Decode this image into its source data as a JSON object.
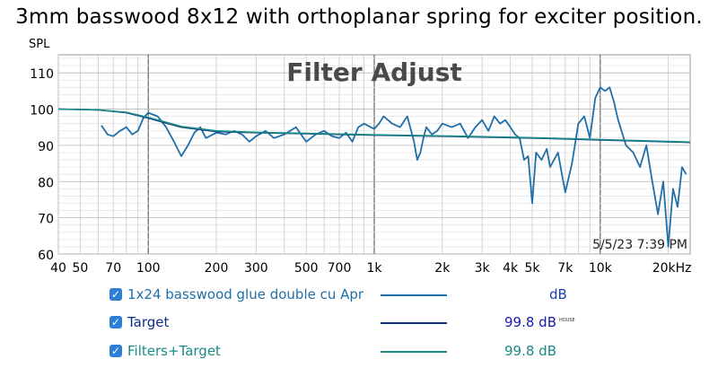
{
  "page_title": "3mm basswood 8x12 with orthoplanar spring for exciter position.",
  "legend": [
    {
      "name": "1x24 basswood glue double cu Apr",
      "color": "#1f6fa8",
      "value": "dB",
      "sup": "",
      "checked": "✓"
    },
    {
      "name": "Target",
      "color": "#0d2c8a",
      "value": "99.8 dB",
      "sup": "HOUSE",
      "checked": "✓"
    },
    {
      "name": "Filters+Target",
      "color": "#1a8a84",
      "value": "99.8 dB",
      "sup": "",
      "checked": "✓"
    }
  ],
  "chart_data": {
    "type": "line",
    "title": "Filter Adjust",
    "ylabel": "SPL",
    "timestamp": "5/5/23 7:39 PM",
    "x_scale": "log",
    "xlim": [
      40,
      25000
    ],
    "ylim": [
      60,
      115
    ],
    "grid": true,
    "x_ticks": [
      {
        "v": 40,
        "label": "40"
      },
      {
        "v": 50,
        "label": "50"
      },
      {
        "v": 70,
        "label": "70"
      },
      {
        "v": 100,
        "label": "100"
      },
      {
        "v": 200,
        "label": "200"
      },
      {
        "v": 300,
        "label": "300"
      },
      {
        "v": 500,
        "label": "500"
      },
      {
        "v": 700,
        "label": "700"
      },
      {
        "v": 1000,
        "label": "1k"
      },
      {
        "v": 2000,
        "label": "2k"
      },
      {
        "v": 3000,
        "label": "3k"
      },
      {
        "v": 4000,
        "label": "4k"
      },
      {
        "v": 5000,
        "label": "5k"
      },
      {
        "v": 7000,
        "label": "7k"
      },
      {
        "v": 10000,
        "label": "10k"
      },
      {
        "v": 20000,
        "label": "20kHz"
      }
    ],
    "y_ticks": [
      {
        "v": 60,
        "label": "60"
      },
      {
        "v": 70,
        "label": "70"
      },
      {
        "v": 80,
        "label": "80"
      },
      {
        "v": 90,
        "label": "90"
      },
      {
        "v": 100,
        "label": "100"
      },
      {
        "v": 110,
        "label": "110"
      }
    ],
    "series": [
      {
        "name": "1x24 basswood glue double cu Apr",
        "color": "#1f6fa8",
        "x": [
          62,
          66,
          70,
          75,
          80,
          85,
          90,
          95,
          100,
          110,
          120,
          130,
          140,
          150,
          160,
          170,
          180,
          200,
          220,
          240,
          260,
          280,
          300,
          330,
          360,
          400,
          450,
          500,
          550,
          600,
          650,
          700,
          750,
          800,
          850,
          900,
          1000,
          1050,
          1100,
          1200,
          1300,
          1400,
          1500,
          1550,
          1600,
          1650,
          1700,
          1800,
          1900,
          2000,
          2200,
          2400,
          2600,
          2800,
          3000,
          3200,
          3400,
          3600,
          3800,
          4000,
          4200,
          4400,
          4600,
          4800,
          5000,
          5200,
          5500,
          5800,
          6000,
          6500,
          7000,
          7500,
          8000,
          8500,
          9000,
          9500,
          10000,
          10500,
          11000,
          11500,
          12000,
          13000,
          14000,
          15000,
          16000,
          17000,
          18000,
          19000,
          20000,
          21000,
          22000,
          23000,
          24000
        ],
        "y": [
          95.5,
          93.0,
          92.5,
          94.0,
          95.0,
          93.0,
          94.0,
          97.5,
          99.0,
          98.0,
          95.0,
          91.0,
          87.0,
          90.0,
          93.5,
          95.0,
          92.0,
          93.5,
          93.0,
          94.0,
          93.0,
          91.0,
          92.5,
          94.0,
          92.0,
          93.0,
          95.0,
          91.0,
          93.0,
          94.0,
          92.5,
          92.0,
          93.5,
          91.0,
          95.0,
          96.0,
          94.5,
          96.0,
          98.0,
          96.0,
          95.0,
          98.0,
          91.0,
          86.0,
          88.0,
          92.0,
          95.0,
          93.0,
          94.0,
          96.0,
          95.0,
          96.0,
          92.0,
          95.0,
          97.0,
          94.0,
          98.0,
          96.0,
          97.0,
          95.0,
          93.0,
          92.0,
          86.0,
          87.0,
          74.0,
          88.0,
          86.0,
          89.0,
          84.0,
          88.0,
          77.0,
          85.0,
          96.0,
          98.0,
          92.0,
          103.0,
          106.0,
          105.0,
          106.0,
          102.0,
          97.0,
          90.0,
          88.0,
          84.0,
          90.0,
          80.0,
          71.0,
          80.0,
          62.0,
          78.0,
          73.0,
          84.0,
          82.0
        ]
      },
      {
        "name": "Target",
        "color": "#0d2c8a",
        "x": [
          40,
          60,
          80,
          100,
          140,
          200,
          300,
          500,
          1000,
          2000,
          5000,
          10000,
          20000,
          25000
        ],
        "y": [
          100.0,
          99.8,
          99.0,
          97.5,
          95.0,
          93.8,
          93.5,
          93.2,
          92.8,
          92.5,
          92.0,
          91.5,
          91.0,
          90.8
        ]
      },
      {
        "name": "Filters+Target",
        "color": "#1a8a84",
        "x": [
          40,
          60,
          80,
          100,
          140,
          200,
          300,
          500,
          1000,
          2000,
          5000,
          10000,
          20000,
          25000
        ],
        "y": [
          100.0,
          99.8,
          99.1,
          97.7,
          95.2,
          94.0,
          93.6,
          93.3,
          92.9,
          92.6,
          92.1,
          91.6,
          91.1,
          90.9
        ]
      }
    ]
  }
}
